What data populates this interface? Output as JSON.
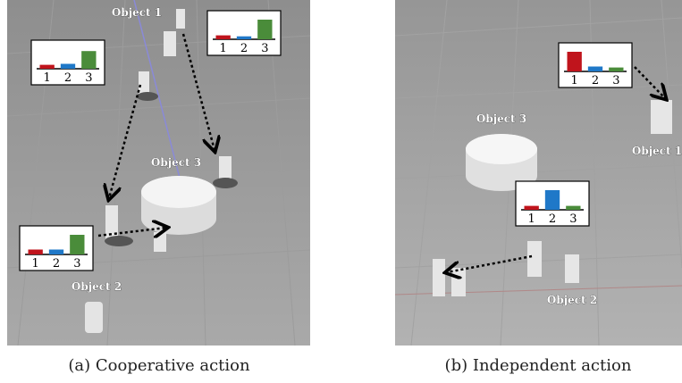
{
  "panels": [
    {
      "caption": "(a) Cooperative action",
      "objects": [
        "Object 1",
        "Object 3",
        "Object 2"
      ],
      "insets": [
        {
          "categories": [
            "1",
            "2",
            "3"
          ],
          "values": [
            0.2,
            0.15,
            1.0
          ],
          "colors": [
            "#c0141c",
            "#1f78c8",
            "#4a8c3a"
          ]
        },
        {
          "categories": [
            "1",
            "2",
            "3"
          ],
          "values": [
            0.2,
            0.25,
            0.9
          ],
          "colors": [
            "#c0141c",
            "#1f78c8",
            "#4a8c3a"
          ]
        },
        {
          "categories": [
            "1",
            "2",
            "3"
          ],
          "values": [
            0.25,
            0.25,
            1.0
          ],
          "colors": [
            "#c0141c",
            "#1f78c8",
            "#4a8c3a"
          ]
        }
      ]
    },
    {
      "caption": "(b) Independent action",
      "objects": [
        "Object 3",
        "Object 1",
        "Object 2"
      ],
      "insets": [
        {
          "categories": [
            "1",
            "2",
            "3"
          ],
          "values": [
            1.0,
            0.25,
            0.2
          ],
          "colors": [
            "#c0141c",
            "#1f78c8",
            "#4a8c3a"
          ]
        },
        {
          "categories": [
            "1",
            "2",
            "3"
          ],
          "values": [
            0.2,
            1.0,
            0.2
          ],
          "colors": [
            "#c0141c",
            "#1f78c8",
            "#4a8c3a"
          ]
        }
      ]
    }
  ]
}
